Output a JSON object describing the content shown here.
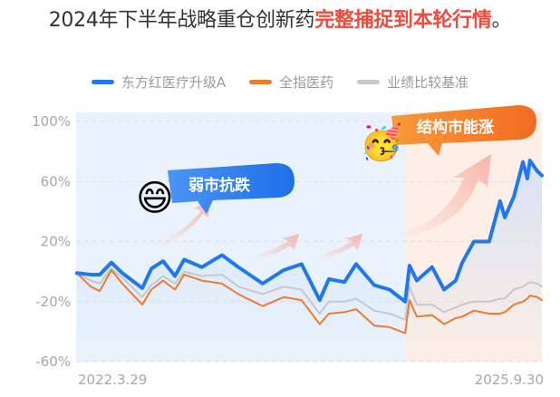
{
  "title": {
    "normal": "2024年下半年战略重仓创新药",
    "highlight": "完整捕捉到本轮行情",
    "end": "。"
  },
  "colors": {
    "blue": "#1f78f0",
    "orange": "#f07a2e",
    "gray": "#c8c8c8",
    "highlight": "#f04b3c",
    "weak_bubble": "#2b7ff2",
    "strong_bubble": "#f47b2a"
  },
  "annotations": {
    "weak": {
      "text": "弱市抗跌",
      "emoji": "😄"
    },
    "strong": {
      "text": "结构市能涨",
      "emoji": "🥳"
    }
  },
  "chart_data": {
    "type": "line",
    "title": "",
    "xlabel": "",
    "ylabel": "",
    "ylim": [
      -60,
      100
    ],
    "yticks": [
      100,
      60,
      20,
      -20,
      -60
    ],
    "ytick_labels": [
      "100%",
      "60%",
      "20%",
      "-20%",
      "-60%"
    ],
    "xtick_labels": [
      "2022.3.29",
      "2025.9.30"
    ],
    "xlim": [
      "2022-03-29",
      "2025-09-30"
    ],
    "grid": true,
    "legend": "top",
    "shaded_periods": [
      {
        "from": "2022-03-29",
        "to": "2024-09-19",
        "color": "#eaf3fd"
      },
      {
        "from": "2024-09-19",
        "to": "2025-09-30",
        "color": "#fdeee6"
      }
    ],
    "x": [
      "2022-03-31",
      "2022-05-08",
      "2022-06-02",
      "2022-07-04",
      "2022-08-03",
      "2022-09-27",
      "2022-10-22",
      "2022-11-23",
      "2022-12-26",
      "2023-01-20",
      "2023-03-10",
      "2023-05-04",
      "2023-06-18",
      "2023-08-24",
      "2023-10-21",
      "2023-12-09",
      "2024-01-28",
      "2024-02-22",
      "2024-04-05",
      "2024-05-07",
      "2024-06-26",
      "2024-08-07",
      "2024-09-19",
      "2024-10-01",
      "2024-10-21",
      "2024-12-02",
      "2025-01-04",
      "2025-02-05",
      "2025-02-23",
      "2025-03-27",
      "2025-05-08",
      "2025-06-07",
      "2025-06-20",
      "2025-07-15",
      "2025-08-09",
      "2025-08-21",
      "2025-08-28",
      "2025-09-17",
      "2025-09-30"
    ],
    "series": [
      {
        "name": "东方红医疗升级A",
        "color": "#1f78f0",
        "values": [
          -1,
          -2,
          -2,
          6,
          -1,
          -11,
          2,
          7,
          -3,
          8,
          3,
          11,
          3,
          -8,
          1,
          5,
          -19,
          -5,
          -7,
          5,
          -9,
          -12,
          -20,
          4,
          -6,
          3,
          -12,
          -6,
          6,
          20,
          20,
          47,
          36,
          50,
          73,
          62,
          74,
          67,
          64
        ]
      },
      {
        "name": "全指医药",
        "color": "#f07a2e",
        "values": [
          -1,
          -10,
          -13,
          1,
          -8,
          -22,
          -12,
          -6,
          -12,
          -2,
          -6,
          -8,
          -15,
          -23,
          -17,
          -19,
          -35,
          -28,
          -27,
          -25,
          -36,
          -37,
          -41,
          -19,
          -30,
          -29,
          -35,
          -31,
          -30,
          -26,
          -28,
          -28,
          -27,
          -22,
          -20,
          -18,
          -16,
          -17,
          -19
        ]
      },
      {
        "name": "业绩比较基准",
        "color": "#c8c8c8",
        "values": [
          -1,
          -6,
          -8,
          2,
          -4,
          -17,
          -9,
          -3,
          -8,
          0,
          -3,
          -2,
          -10,
          -15,
          -10,
          -12,
          -28,
          -20,
          -20,
          -18,
          -26,
          -28,
          -32,
          -10,
          -22,
          -22,
          -27,
          -24,
          -22,
          -20,
          -20,
          -18,
          -18,
          -12,
          -10,
          -8,
          -7,
          -8,
          -10
        ]
      }
    ]
  }
}
